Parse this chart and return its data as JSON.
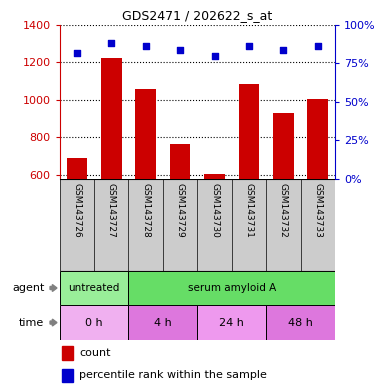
{
  "title": "GDS2471 / 202622_s_at",
  "samples": [
    "GSM143726",
    "GSM143727",
    "GSM143728",
    "GSM143729",
    "GSM143730",
    "GSM143731",
    "GSM143732",
    "GSM143733"
  ],
  "counts": [
    690,
    1225,
    1060,
    765,
    605,
    1085,
    930,
    1005
  ],
  "percentiles": [
    82,
    88,
    86,
    84,
    80,
    86,
    84,
    86
  ],
  "ylim_left": [
    580,
    1400
  ],
  "ylim_right": [
    0,
    100
  ],
  "yticks_left": [
    600,
    800,
    1000,
    1200,
    1400
  ],
  "yticks_right": [
    0,
    25,
    50,
    75,
    100
  ],
  "bar_color": "#cc0000",
  "dot_color": "#0000cc",
  "agent_row": [
    {
      "label": "untreated",
      "start": 0,
      "end": 2,
      "color": "#99ee99"
    },
    {
      "label": "serum amyloid A",
      "start": 2,
      "end": 8,
      "color": "#66dd66"
    }
  ],
  "time_row": [
    {
      "label": "0 h",
      "start": 0,
      "end": 2,
      "color": "#f0b0f0"
    },
    {
      "label": "4 h",
      "start": 2,
      "end": 4,
      "color": "#dd77dd"
    },
    {
      "label": "24 h",
      "start": 4,
      "end": 6,
      "color": "#ee99ee"
    },
    {
      "label": "48 h",
      "start": 6,
      "end": 8,
      "color": "#dd77dd"
    }
  ],
  "right_axis_color": "#0000cc",
  "left_axis_color": "#cc0000",
  "tick_area_color": "#cccccc",
  "agent_label": "agent",
  "time_label": "time",
  "count_label": "count",
  "percentile_label": "percentile rank within the sample",
  "legend_count_color": "#cc0000",
  "legend_dot_color": "#0000cc"
}
